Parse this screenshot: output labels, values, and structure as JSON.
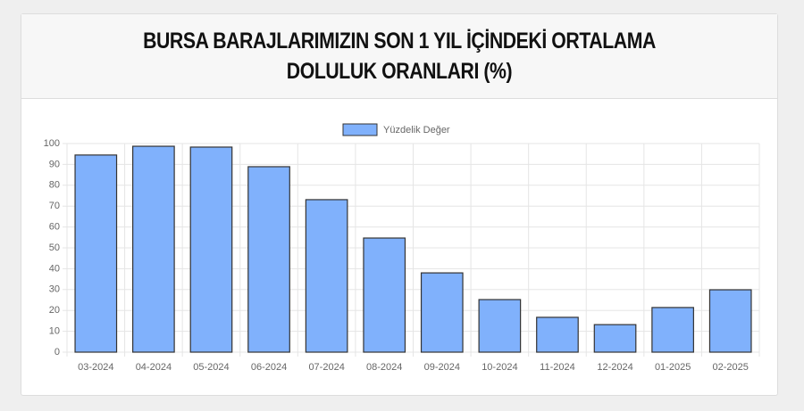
{
  "chart_data": {
    "type": "bar",
    "title": "BURSA BARAJLARIMIZIN SON 1 YIL İÇİNDEKİ ORTALAMA DOLULUK ORANLARI (%)",
    "categories": [
      "03-2024",
      "04-2024",
      "05-2024",
      "06-2024",
      "07-2024",
      "08-2024",
      "09-2024",
      "10-2024",
      "11-2024",
      "12-2024",
      "01-2025",
      "02-2025"
    ],
    "series": [
      {
        "name": "Yüzdelik Değer",
        "color": "#80b1fc",
        "values": [
          94.5,
          98.7,
          98.3,
          88.9,
          73.1,
          54.7,
          38.0,
          25.2,
          16.7,
          13.2,
          21.4,
          29.9
        ]
      }
    ],
    "ylim": [
      0,
      100
    ],
    "yticks": [
      0,
      10,
      20,
      30,
      40,
      50,
      60,
      70,
      80,
      90,
      100
    ],
    "grid": true
  }
}
